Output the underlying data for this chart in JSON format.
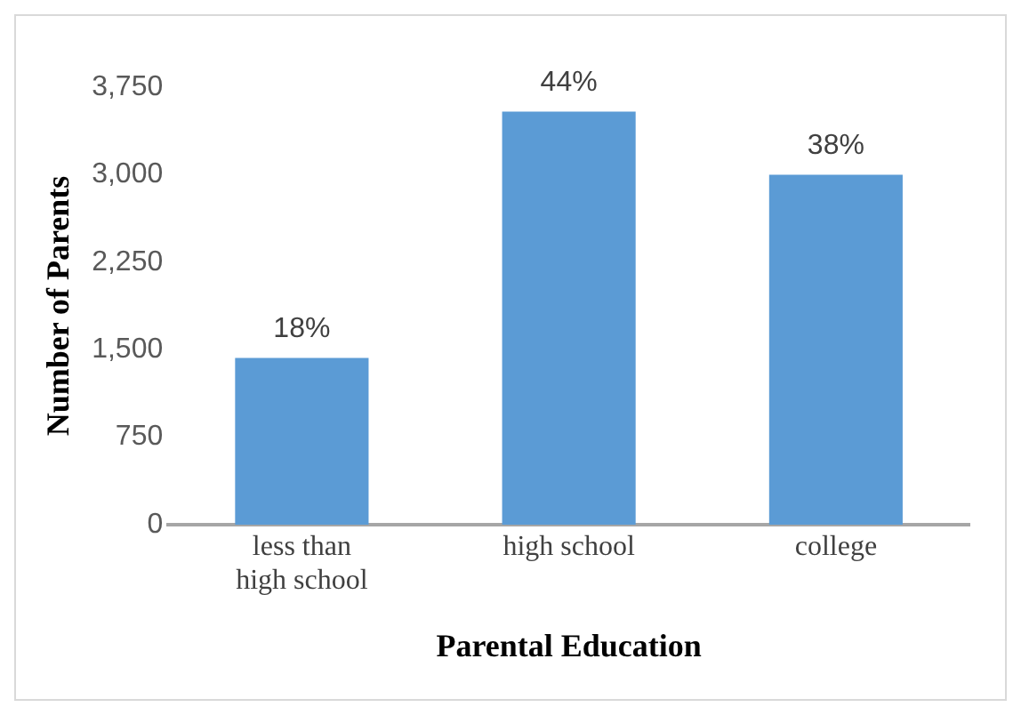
{
  "chart_data": {
    "type": "bar",
    "xlabel": "Parental Education",
    "ylabel": "Number of Parents",
    "categories": [
      "less than high school",
      "high school",
      "college"
    ],
    "values": [
      1430,
      3540,
      3000
    ],
    "annotations": [
      {
        "text": "18%",
        "x": "less than high school",
        "y": 1430
      },
      {
        "text": "44%",
        "x": "high school",
        "y": 3540
      },
      {
        "text": "38%",
        "x": "college",
        "y": 3000
      }
    ],
    "color": "#5b9bd5",
    "ylim": [
      0,
      3750
    ],
    "yticks": [
      0,
      750,
      {
        "value": 1500,
        "label": "1,500"
      },
      {
        "value": 2250,
        "label": "2,250"
      },
      {
        "value": 3000,
        "label": "3,000"
      },
      {
        "value": 3750,
        "label": "3,750"
      }
    ],
    "grid": false,
    "legend": false
  }
}
